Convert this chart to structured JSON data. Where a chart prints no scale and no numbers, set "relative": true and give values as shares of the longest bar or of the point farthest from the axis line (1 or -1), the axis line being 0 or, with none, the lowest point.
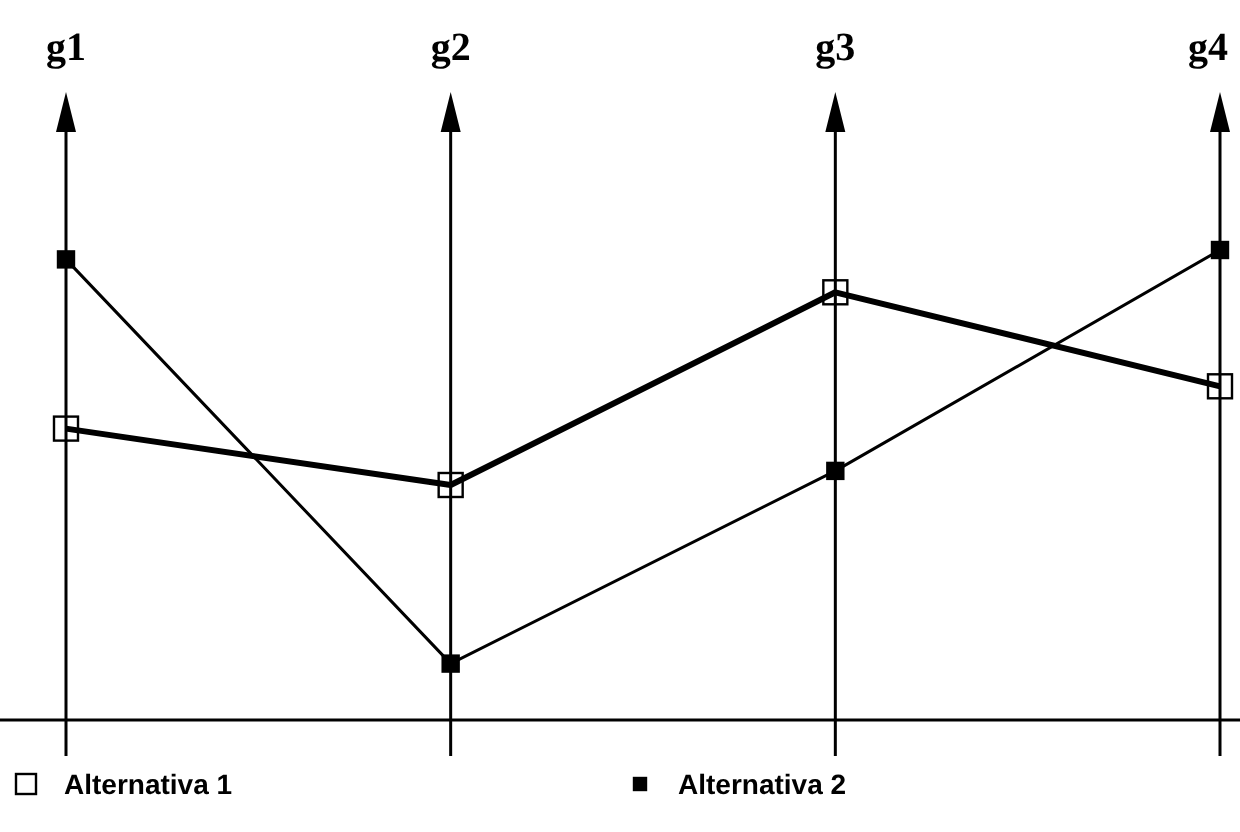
{
  "chart_data": {
    "type": "line",
    "relative": true,
    "categories": [
      "g1",
      "g2",
      "g3",
      "g4"
    ],
    "series": [
      {
        "name": "Alternativa 1",
        "color": "#000000",
        "values": [
          0.62,
          0.5,
          0.91,
          0.71
        ]
      },
      {
        "name": "Alternativa 2",
        "color": "#000000",
        "values": [
          0.98,
          0.12,
          0.53,
          1
        ]
      }
    ],
    "grid": "x",
    "legend": "bottom",
    "marker": "square",
    "line_style": "solid"
  }
}
